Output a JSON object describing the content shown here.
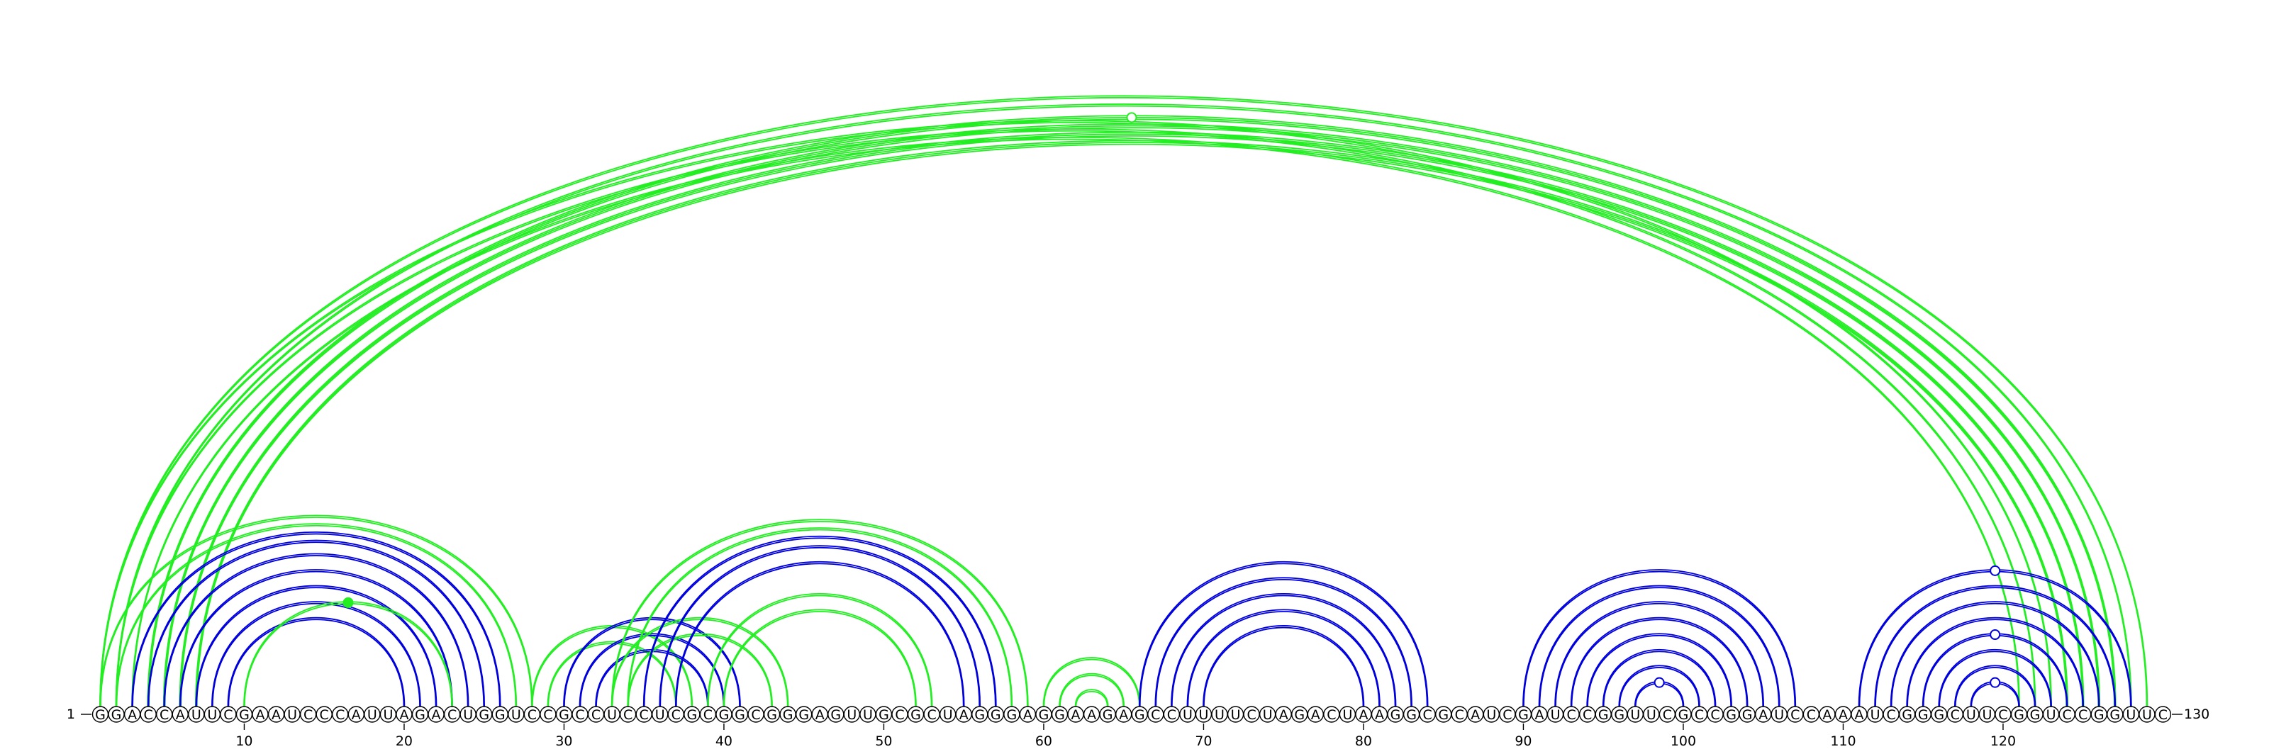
{
  "sequence": "GGACCAUUCGAAUCCCAUUAGACUGGUCCGCCUCCUCGCGGCGGGAGUUGCGCUAGGGAGGAAGAGCCUUUUCUAGACUAAGGCGCAUCGAUCCGGUUCGCCGGAUCCAAAUCGGGCUUCGGUCCGGUUC",
  "start_label": "1",
  "end_label": "130",
  "ticks": [
    10,
    20,
    30,
    40,
    50,
    60,
    70,
    80,
    90,
    100,
    110,
    120
  ],
  "colors": {
    "blue": "#0000dd",
    "green": "#22ee22"
  },
  "arc_groups": [
    {
      "color": "green",
      "pairs": [
        [
          1,
          123
        ],
        [
          2,
          122
        ],
        [
          3,
          121
        ]
      ],
      "strands": 2
    },
    {
      "color": "green",
      "pairs": [
        [
          4,
          127
        ],
        [
          5,
          126
        ]
      ],
      "strands": 3
    },
    {
      "color": "green",
      "pairs": [
        [
          6,
          125
        ],
        [
          7,
          124
        ]
      ],
      "strands": 3
    },
    {
      "color": "green",
      "pairs": [
        [
          1,
          129
        ],
        [
          2,
          128
        ]
      ],
      "strands": 2
    },
    {
      "color": "green",
      "pairs": [
        [
          1,
          28
        ],
        [
          2,
          27
        ]
      ],
      "strands": 2
    },
    {
      "color": "blue",
      "pairs": [
        [
          3,
          26
        ],
        [
          4,
          25
        ],
        [
          5,
          24
        ],
        [
          6,
          23
        ],
        [
          7,
          22
        ]
      ],
      "strands": 2
    },
    {
      "color": "blue",
      "pairs": [
        [
          8,
          21
        ],
        [
          9,
          20
        ]
      ],
      "strands": 2
    },
    {
      "color": "green",
      "pairs": [
        [
          10,
          23
        ]
      ],
      "strands": 2
    },
    {
      "color": "green",
      "pairs": [
        [
          28,
          38
        ],
        [
          29,
          37
        ]
      ],
      "strands": 2
    },
    {
      "color": "blue",
      "pairs": [
        [
          30,
          41
        ],
        [
          31,
          40
        ],
        [
          32,
          39
        ]
      ],
      "strands": 2
    },
    {
      "color": "green",
      "pairs": [
        [
          33,
          44
        ],
        [
          34,
          43
        ]
      ],
      "strands": 2
    },
    {
      "color": "blue",
      "pairs": [
        [
          35,
          57
        ],
        [
          36,
          56
        ],
        [
          37,
          55
        ]
      ],
      "strands": 2
    },
    {
      "color": "green",
      "pairs": [
        [
          33,
          59
        ],
        [
          34,
          58
        ]
      ],
      "strands": 2
    },
    {
      "color": "green",
      "pairs": [
        [
          39,
          53
        ],
        [
          40,
          52
        ]
      ],
      "strands": 2
    },
    {
      "color": "green",
      "pairs": [
        [
          60,
          66
        ],
        [
          61,
          65
        ],
        [
          62,
          64
        ]
      ],
      "strands": 2
    },
    {
      "color": "blue",
      "pairs": [
        [
          66,
          84
        ],
        [
          67,
          83
        ],
        [
          68,
          82
        ],
        [
          69,
          81
        ],
        [
          70,
          80
        ]
      ],
      "strands": 2
    },
    {
      "color": "blue",
      "pairs": [
        [
          90,
          107
        ],
        [
          91,
          106
        ],
        [
          92,
          105
        ],
        [
          93,
          104
        ],
        [
          94,
          103
        ],
        [
          95,
          102
        ],
        [
          96,
          101
        ],
        [
          97,
          100
        ]
      ],
      "strands": 2
    },
    {
      "color": "blue",
      "pairs": [
        [
          111,
          128
        ],
        [
          112,
          127
        ],
        [
          113,
          126
        ],
        [
          114,
          125
        ],
        [
          115,
          124
        ],
        [
          116,
          123
        ],
        [
          117,
          122
        ],
        [
          118,
          121
        ]
      ],
      "strands": 2
    }
  ],
  "markers": [
    {
      "color": "green",
      "at_pair": [
        4,
        127
      ],
      "filled": false
    },
    {
      "color": "green",
      "at_pair": [
        10,
        23
      ],
      "filled": true
    },
    {
      "color": "blue",
      "at_pair": [
        97,
        100
      ],
      "filled": false
    },
    {
      "color": "blue",
      "at_pair": [
        111,
        128
      ],
      "filled": false
    },
    {
      "color": "blue",
      "at_pair": [
        115,
        124
      ],
      "filled": false
    },
    {
      "color": "blue",
      "at_pair": [
        118,
        121
      ],
      "filled": false
    }
  ]
}
